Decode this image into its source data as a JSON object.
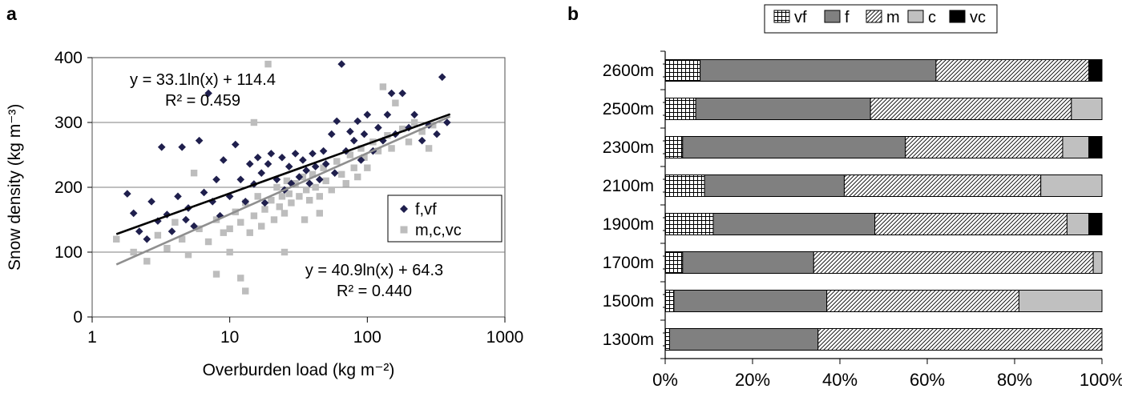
{
  "panels": {
    "a": {
      "label": "a"
    },
    "b": {
      "label": "b"
    }
  },
  "chart_data": [
    {
      "type": "scatter",
      "panel": "a",
      "title": "",
      "xlabel": "Overburden load (kg m⁻²)",
      "ylabel": "Snow density (kg m⁻³)",
      "x_scale": "log",
      "xlim": [
        1,
        1000
      ],
      "ylim": [
        0,
        400
      ],
      "x_ticks": [
        "1",
        "10",
        "100",
        "1000"
      ],
      "y_ticks": [
        0,
        100,
        200,
        300,
        400
      ],
      "grid": "horizontal",
      "annotations": [
        {
          "position": "top-left",
          "lines": [
            "y = 33.1ln(x) + 114.4",
            "R² = 0.459"
          ]
        },
        {
          "position": "bottom-right",
          "lines": [
            "y = 40.9ln(x) + 64.3",
            "R² = 0.440"
          ]
        }
      ],
      "legend": {
        "position": "right-middle",
        "entries": [
          "f,vf",
          "m,c,vc"
        ]
      },
      "series": [
        {
          "name": "f,vf",
          "marker": "diamond",
          "color": "#1f1f4d",
          "trend": {
            "equation": "y = 33.1ln(x) + 114.4",
            "a": 33.1,
            "b": 114.4,
            "r2": 0.459,
            "x_range": [
              1.5,
              400
            ],
            "color": "#000000"
          },
          "points": [
            [
              1.8,
              190
            ],
            [
              2.0,
              160
            ],
            [
              2.2,
              132
            ],
            [
              2.5,
              120
            ],
            [
              2.7,
              178
            ],
            [
              3.0,
              148
            ],
            [
              3.2,
              262
            ],
            [
              3.5,
              158
            ],
            [
              3.8,
              132
            ],
            [
              4.2,
              186
            ],
            [
              4.5,
              262
            ],
            [
              4.8,
              150
            ],
            [
              5.0,
              168
            ],
            [
              5.5,
              140
            ],
            [
              6.0,
              272
            ],
            [
              6.5,
              192
            ],
            [
              7.0,
              345
            ],
            [
              7.5,
              178
            ],
            [
              8.0,
              212
            ],
            [
              8.5,
              156
            ],
            [
              9.0,
              242
            ],
            [
              10,
              186
            ],
            [
              11,
              266
            ],
            [
              12,
              212
            ],
            [
              13,
              178
            ],
            [
              14,
              236
            ],
            [
              15,
              205
            ],
            [
              16,
              246
            ],
            [
              17,
              222
            ],
            [
              18,
              176
            ],
            [
              19,
              236
            ],
            [
              20,
              252
            ],
            [
              22,
              212
            ],
            [
              24,
              246
            ],
            [
              25,
              196
            ],
            [
              27,
              232
            ],
            [
              28,
              206
            ],
            [
              30,
              252
            ],
            [
              32,
              216
            ],
            [
              34,
              242
            ],
            [
              36,
              226
            ],
            [
              38,
              206
            ],
            [
              40,
              252
            ],
            [
              42,
              232
            ],
            [
              45,
              212
            ],
            [
              48,
              256
            ],
            [
              50,
              236
            ],
            [
              55,
              282
            ],
            [
              58,
              222
            ],
            [
              60,
              302
            ],
            [
              65,
              390
            ],
            [
              70,
              256
            ],
            [
              75,
              286
            ],
            [
              80,
              272
            ],
            [
              85,
              302
            ],
            [
              90,
              242
            ],
            [
              95,
              282
            ],
            [
              100,
              312
            ],
            [
              110,
              256
            ],
            [
              120,
              292
            ],
            [
              130,
              272
            ],
            [
              140,
              312
            ],
            [
              150,
              345
            ],
            [
              160,
              282
            ],
            [
              180,
              345
            ],
            [
              200,
              292
            ],
            [
              220,
              312
            ],
            [
              250,
              272
            ],
            [
              280,
              296
            ],
            [
              320,
              282
            ],
            [
              350,
              370
            ],
            [
              380,
              300
            ]
          ]
        },
        {
          "name": "m,c,vc",
          "marker": "square",
          "color": "#bdbdbd",
          "trend": {
            "equation": "y = 40.9ln(x) + 64.3",
            "a": 40.9,
            "b": 64.3,
            "r2": 0.44,
            "x_range": [
              1.5,
              400
            ],
            "color": "#8f8f8f"
          },
          "points": [
            [
              1.5,
              120
            ],
            [
              2.0,
              100
            ],
            [
              2.5,
              86
            ],
            [
              3.0,
              126
            ],
            [
              3.5,
              106
            ],
            [
              4.0,
              146
            ],
            [
              4.5,
              120
            ],
            [
              5.0,
              96
            ],
            [
              5.5,
              222
            ],
            [
              6.0,
              136
            ],
            [
              7.0,
              116
            ],
            [
              8.0,
              150
            ],
            [
              8.0,
              66
            ],
            [
              9.0,
              130
            ],
            [
              10,
              100
            ],
            [
              10,
              136
            ],
            [
              11,
              162
            ],
            [
              12,
              146
            ],
            [
              12,
              60
            ],
            [
              13,
              176
            ],
            [
              13,
              40
            ],
            [
              14,
              130
            ],
            [
              15,
              300
            ],
            [
              15,
              156
            ],
            [
              16,
              186
            ],
            [
              17,
              140
            ],
            [
              18,
              166
            ],
            [
              19,
              390
            ],
            [
              20,
              180
            ],
            [
              21,
              150
            ],
            [
              22,
              200
            ],
            [
              23,
              170
            ],
            [
              24,
              186
            ],
            [
              25,
              160
            ],
            [
              25,
              100
            ],
            [
              26,
              210
            ],
            [
              27,
              190
            ],
            [
              28,
              176
            ],
            [
              30,
              206
            ],
            [
              32,
              186
            ],
            [
              34,
              216
            ],
            [
              35,
              150
            ],
            [
              36,
              196
            ],
            [
              38,
              180
            ],
            [
              40,
              220
            ],
            [
              42,
              200
            ],
            [
              45,
              186
            ],
            [
              45,
              160
            ],
            [
              48,
              230
            ],
            [
              50,
              210
            ],
            [
              55,
              196
            ],
            [
              60,
              240
            ],
            [
              65,
              220
            ],
            [
              70,
              206
            ],
            [
              75,
              250
            ],
            [
              80,
              230
            ],
            [
              85,
              216
            ],
            [
              90,
              260
            ],
            [
              95,
              246
            ],
            [
              100,
              230
            ],
            [
              110,
              270
            ],
            [
              120,
              256
            ],
            [
              130,
              355
            ],
            [
              140,
              280
            ],
            [
              150,
              260
            ],
            [
              160,
              330
            ],
            [
              180,
              290
            ],
            [
              200,
              270
            ],
            [
              220,
              300
            ],
            [
              250,
              286
            ],
            [
              280,
              260
            ],
            [
              300,
              296
            ]
          ]
        }
      ]
    },
    {
      "type": "bar",
      "panel": "b",
      "orientation": "horizontal",
      "stacked": true,
      "percent": true,
      "categories": [
        "2600m",
        "2500m",
        "2300m",
        "2100m",
        "1900m",
        "1700m",
        "1500m",
        "1300m"
      ],
      "series": [
        {
          "name": "vf",
          "pattern": "grid",
          "color": "#ffffff",
          "values": [
            8,
            7,
            4,
            9,
            11,
            4,
            2,
            1
          ]
        },
        {
          "name": "f",
          "pattern": null,
          "color": "#808080",
          "values": [
            54,
            40,
            51,
            32,
            37,
            30,
            35,
            34
          ]
        },
        {
          "name": "m",
          "pattern": "diag",
          "color": "#ffffff",
          "values": [
            35,
            46,
            36,
            45,
            44,
            64,
            44,
            65
          ]
        },
        {
          "name": "c",
          "pattern": null,
          "color": "#c0c0c0",
          "values": [
            0,
            7,
            6,
            14,
            5,
            2,
            19,
            0
          ]
        },
        {
          "name": "vc",
          "pattern": null,
          "color": "#000000",
          "values": [
            3,
            0,
            3,
            0,
            3,
            0,
            0,
            0
          ]
        }
      ],
      "xlim": [
        0,
        100
      ],
      "x_ticks": [
        "0%",
        "20%",
        "40%",
        "60%",
        "80%",
        "100%"
      ],
      "legend_position": "top"
    }
  ]
}
